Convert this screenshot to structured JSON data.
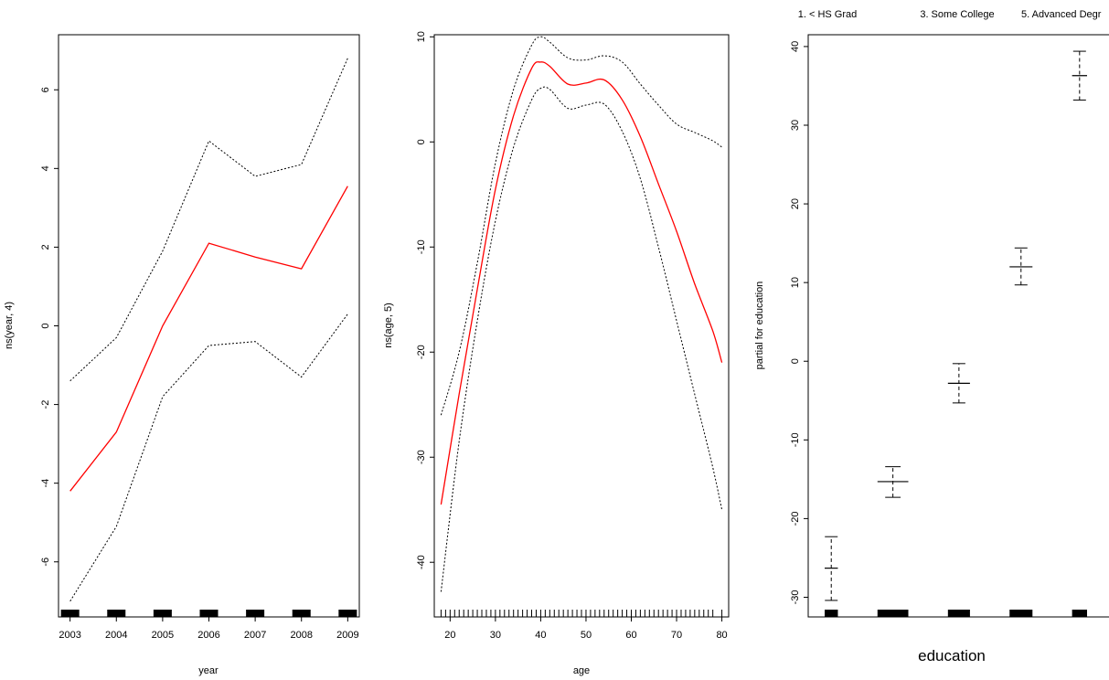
{
  "chart_data": [
    {
      "type": "line",
      "xlabel": "year",
      "ylabel": "ns(year, 4)",
      "xlim": [
        2002.75,
        2009.25
      ],
      "ylim": [
        -7.4,
        7.4
      ],
      "xticks": [
        2003,
        2004,
        2005,
        2006,
        2007,
        2008,
        2009
      ],
      "yticks": [
        -6,
        -4,
        -2,
        0,
        2,
        4,
        6
      ],
      "x": [
        2003,
        2004,
        2005,
        2006,
        2007,
        2008,
        2009
      ],
      "series": [
        {
          "role": "fit",
          "color": "#ff0000",
          "style": "solid",
          "values": [
            -4.2,
            -2.7,
            0.0,
            2.1,
            1.75,
            1.45,
            3.55
          ]
        },
        {
          "role": "upper",
          "color": "#000000",
          "style": "dotted",
          "values": [
            -1.4,
            -0.3,
            1.9,
            4.7,
            3.8,
            4.1,
            6.8
          ]
        },
        {
          "role": "lower",
          "color": "#000000",
          "style": "dotted",
          "values": [
            -7.0,
            -5.1,
            -1.8,
            -0.5,
            -0.4,
            -1.3,
            0.3
          ]
        }
      ],
      "rug_x": [
        2003,
        2004,
        2005,
        2006,
        2007,
        2008,
        2009
      ]
    },
    {
      "type": "line",
      "xlabel": "age",
      "ylabel": "ns(age, 5)",
      "xlim": [
        16.5,
        81.5
      ],
      "ylim": [
        -45.2,
        10.2
      ],
      "xticks": [
        20,
        30,
        40,
        50,
        60,
        70,
        80
      ],
      "yticks": [
        -40,
        -30,
        -20,
        -10,
        0,
        10
      ],
      "x": [
        18,
        22,
        26,
        30,
        34,
        38,
        40,
        42,
        46,
        50,
        54,
        58,
        62,
        66,
        70,
        74,
        78,
        80
      ],
      "series": [
        {
          "role": "fit",
          "color": "#ff0000",
          "style": "solid",
          "values": [
            -34.5,
            -24.0,
            -14.0,
            -4.5,
            2.5,
            7.0,
            7.6,
            7.2,
            5.5,
            5.6,
            5.9,
            4.0,
            0.5,
            -4.0,
            -8.5,
            -13.5,
            -18.0,
            -21.0
          ]
        },
        {
          "role": "upper",
          "color": "#000000",
          "style": "dotted",
          "values": [
            -26.0,
            -20.0,
            -11.5,
            -2.0,
            5.0,
            9.2,
            10.0,
            9.5,
            8.0,
            7.8,
            8.2,
            7.6,
            5.5,
            3.5,
            1.7,
            0.9,
            0.1,
            -0.5
          ]
        },
        {
          "role": "lower",
          "color": "#000000",
          "style": "dotted",
          "values": [
            -42.8,
            -28.5,
            -17.0,
            -7.5,
            -0.5,
            4.0,
            5.1,
            5.0,
            3.2,
            3.5,
            3.6,
            1.0,
            -3.5,
            -10.0,
            -17.0,
            -24.0,
            -31.0,
            -35.0
          ]
        }
      ],
      "rug_x": [
        18,
        19,
        20,
        21,
        22,
        23,
        24,
        25,
        26,
        27,
        28,
        29,
        30,
        31,
        32,
        33,
        34,
        35,
        36,
        37,
        38,
        39,
        40,
        41,
        42,
        43,
        44,
        45,
        46,
        47,
        48,
        49,
        50,
        51,
        52,
        53,
        54,
        55,
        56,
        57,
        58,
        59,
        60,
        61,
        62,
        63,
        64,
        65,
        66,
        67,
        68,
        69,
        70,
        71,
        72,
        73,
        74,
        75,
        76,
        77,
        78,
        80
      ]
    },
    {
      "type": "errorbar",
      "xlabel": "education",
      "ylabel": "partial for education",
      "ylim": [
        -32.5,
        41.5
      ],
      "yticks": [
        -30,
        -20,
        -10,
        0,
        10,
        20,
        30,
        40
      ],
      "top_labels": [
        "1. < HS Grad",
        "3. Some College",
        "5. Advanced Degr"
      ],
      "categories": [
        {
          "estimate": -26.3,
          "lower": -30.4,
          "upper": -22.3,
          "rug_width": 0.15
        },
        {
          "estimate": -15.3,
          "lower": -17.3,
          "upper": -13.4,
          "rug_width": 0.35
        },
        {
          "estimate": -2.8,
          "lower": -5.3,
          "upper": -0.3,
          "rug_width": 0.25
        },
        {
          "estimate": 12.0,
          "lower": 9.7,
          "upper": 14.4,
          "rug_width": 0.26
        },
        {
          "estimate": 36.3,
          "lower": 33.2,
          "upper": 39.4,
          "rug_width": 0.17
        }
      ]
    }
  ]
}
